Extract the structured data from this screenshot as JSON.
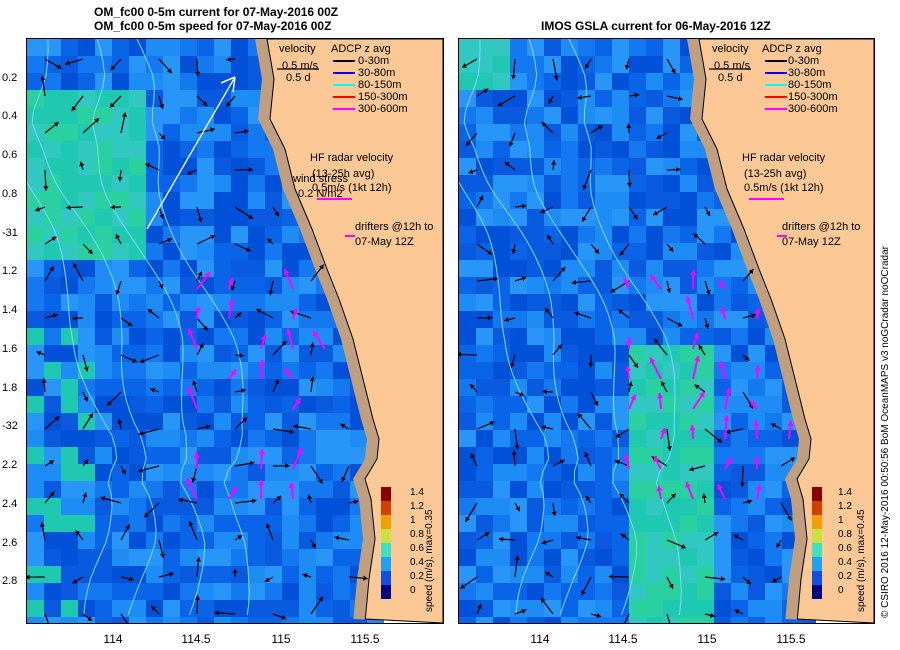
{
  "left_panel": {
    "title_line1": "OM_fc00 0-5m current for 07-May-2016 00Z",
    "title_line2": "OM_fc00 0-5m speed for 07-May-2016 00Z",
    "velocity_label": "velocity",
    "velocity_scale": "0.5 m/s",
    "velocity_time": "0.5 d",
    "hf_radar_title": "HF radar velocity",
    "hf_radar_avg": "(13-25h avg)",
    "hf_radar_scale": "0.5m/s (1kt 12h)",
    "wind_stress_label": "wind stress",
    "wind_stress_scale": "0.2 N/m2",
    "drifters_label1": "drifters @12h to",
    "drifters_label2": "07-May 12Z",
    "colorbar_title": "speed (m/s), max=0.35"
  },
  "right_panel": {
    "title": "IMOS GSLA current for 06-May-2016 12Z",
    "velocity_label": "velocity",
    "velocity_scale": "0.5 m/s",
    "velocity_time": "0.5 d",
    "hf_radar_title": "HF radar velocity",
    "hf_radar_avg": "(13-25h avg)",
    "hf_radar_scale": "0.5m/s (1kt 12h)",
    "drifters_label1": "drifters @12h to",
    "drifters_label2": "07-May 12Z",
    "colorbar_title": "speed (m/s), max=0.45"
  },
  "adcp_legend": {
    "title": "ADCP z avg",
    "entries": [
      {
        "label": "0-30m",
        "color": "#000000"
      },
      {
        "label": "30-80m",
        "color": "#0000ff"
      },
      {
        "label": "80-150m",
        "color": "#00ffff"
      },
      {
        "label": "150-300m",
        "color": "#ff0000"
      },
      {
        "label": "300-600m",
        "color": "#ff00ff"
      }
    ]
  },
  "y_axis_labels": [
    "0.2",
    "0.4",
    "0.6",
    "0.8",
    "-31",
    "1.2",
    "1.4",
    "1.6",
    "1.8",
    "-32",
    "2.2",
    "2.4",
    "2.6",
    "2.8"
  ],
  "x_axis_labels": [
    "114",
    "114.5",
    "115",
    "115.5"
  ],
  "colorbar_ticks": [
    "1.4",
    "1.2",
    "1",
    "0.8",
    "0.6",
    "0.4",
    "0.2",
    "0"
  ],
  "credit": "© CSIRO 2016  12-May-2016 00:50:56 BoM OceanMAPS v3 noGCradar noOCradar",
  "colors": {
    "land": "#fcc895",
    "shelf": "#bf9f7f",
    "hf_radar_arrow": "#ff00ff",
    "contour": "#7fd8ff"
  }
}
